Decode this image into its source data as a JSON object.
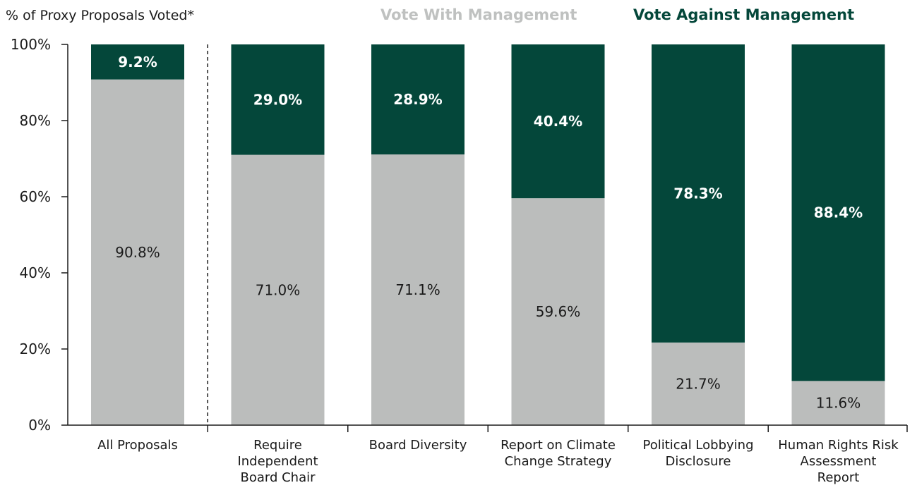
{
  "chart_data": {
    "type": "bar",
    "stacked": true,
    "ylabel": "% of Proxy Proposals Voted*",
    "ylim": [
      0,
      100
    ],
    "yticks": [
      "0%",
      "20%",
      "40%",
      "60%",
      "80%",
      "100%"
    ],
    "ytick_values": [
      0,
      20,
      40,
      60,
      80,
      100
    ],
    "categories": [
      [
        "All Proposals"
      ],
      [
        "Require",
        "Independent",
        "Board Chair"
      ],
      [
        "Board Diversity"
      ],
      [
        "Report on Climate",
        "Change Strategy"
      ],
      [
        "Political Lobbying",
        "Disclosure"
      ],
      [
        "Human Rights Risk",
        "Assessment",
        "Report"
      ]
    ],
    "series": [
      {
        "name": "Vote With Management",
        "color": "#bbbdbc",
        "values": [
          90.8,
          71.0,
          71.1,
          59.6,
          21.7,
          11.6
        ],
        "labels": [
          "90.8%",
          "71.0%",
          "71.1%",
          "59.6%",
          "21.7%",
          "11.6%"
        ]
      },
      {
        "name": "Vote Against Management",
        "color": "#04473a",
        "values": [
          9.2,
          29.0,
          28.9,
          40.4,
          78.3,
          88.4
        ],
        "labels": [
          "9.2%",
          "29.0%",
          "28.9%",
          "40.4%",
          "78.3%",
          "88.4%"
        ]
      }
    ],
    "legend": {
      "placement": "top-right",
      "colors": [
        "#bfc1c0",
        "#04473a"
      ]
    },
    "separator_after_category": 0,
    "grid": false
  }
}
